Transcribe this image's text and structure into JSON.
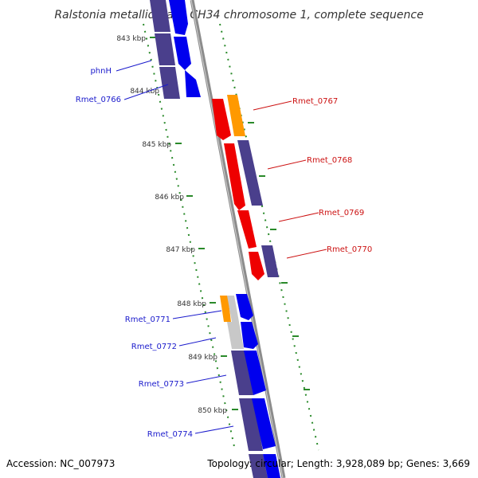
{
  "title": "Ralstonia metallidurans CH34 chromosome 1, complete sequence",
  "footer": {
    "accession": "Accession: NC_007973",
    "summary": "Topology: circular; Length: 3,928,089 bp; Genes: 3,669"
  },
  "ticks": [
    "843 kbp",
    "844 kbp",
    "845 kbp",
    "846 kbp",
    "847 kbp",
    "848 kbp",
    "849 kbp",
    "850 kbp"
  ],
  "genes": {
    "phnH": "phnH",
    "r0766": "Rmet_0766",
    "r0767": "Rmet_0767",
    "r0768": "Rmet_0768",
    "r0769": "Rmet_0769",
    "r0770": "Rmet_0770",
    "r0771": "Rmet_0771",
    "r0772": "Rmet_0772",
    "r0773": "Rmet_0773",
    "r0774": "Rmet_0774"
  },
  "colors": {
    "backbone": "#8c8c8c",
    "dots": "#2a8a2a",
    "blue_cds": "#0000ee",
    "purple_gene": "#4a3f8c",
    "red_cds": "#ee0000",
    "orange_gene": "#ff9900",
    "gray_gene": "#c8c8c8",
    "label_left": "#1a1acc",
    "label_right": "#cc1111"
  }
}
